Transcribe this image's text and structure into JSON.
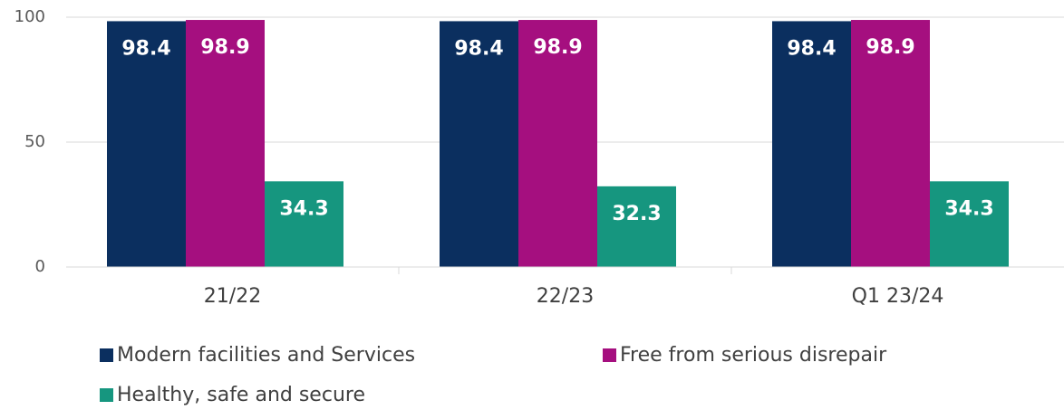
{
  "chart_data": {
    "type": "bar",
    "categories": [
      "21/22",
      "22/23",
      "Q1 23/24"
    ],
    "series": [
      {
        "name": "Modern facilities and Services",
        "color": "#0b2f5f",
        "values": [
          98.4,
          98.4,
          98.4
        ]
      },
      {
        "name": "Free from serious disrepair",
        "color": "#a50f7f",
        "values": [
          98.9,
          98.9,
          98.9
        ]
      },
      {
        "name": "Healthy, safe and secure",
        "color": "#16967f",
        "values": [
          34.3,
          32.3,
          34.3
        ]
      }
    ],
    "ylim": [
      0,
      100
    ],
    "yticks": [
      0,
      50,
      100
    ],
    "grid": true
  }
}
